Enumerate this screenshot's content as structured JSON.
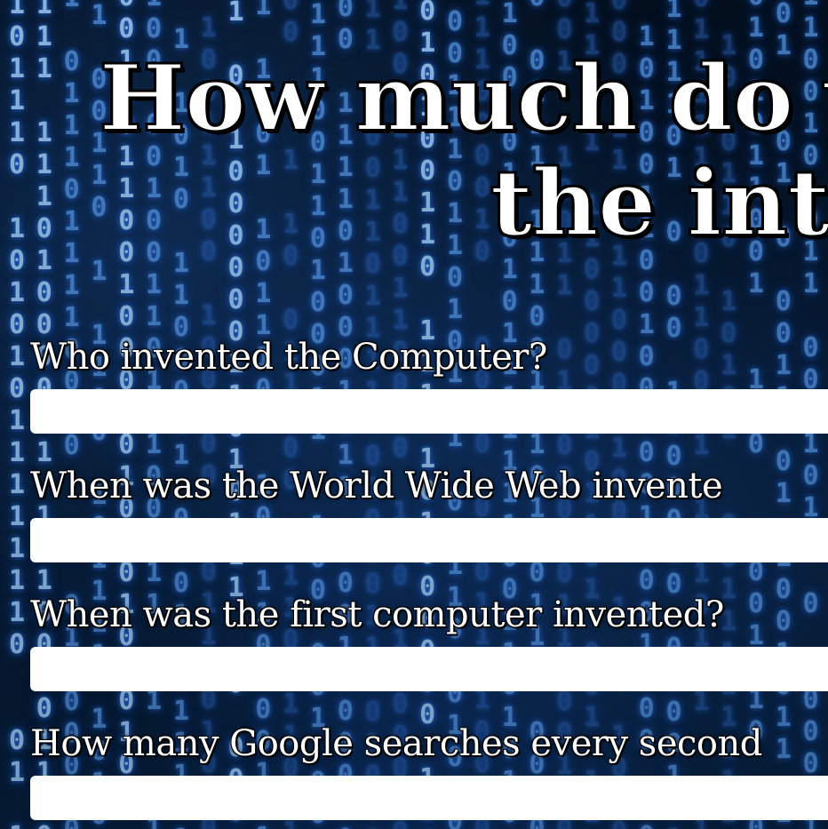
{
  "page": {
    "title_line1": "How much do yo",
    "title_line2": "the inte"
  },
  "quiz": {
    "questions": [
      {
        "label": "Who invented the Computer?",
        "value": "",
        "placeholder": ""
      },
      {
        "label": "When was the World Wide Web invente",
        "value": "",
        "placeholder": ""
      },
      {
        "label": "When was the first computer invented?",
        "value": "",
        "placeholder": ""
      },
      {
        "label": "How many Google searches every second",
        "value": "",
        "placeholder": ""
      }
    ]
  },
  "theme": {
    "background": "#041428",
    "digit_color": "#5fa8ff",
    "text_color": "#ffffff",
    "input_background": "#ffffff"
  }
}
